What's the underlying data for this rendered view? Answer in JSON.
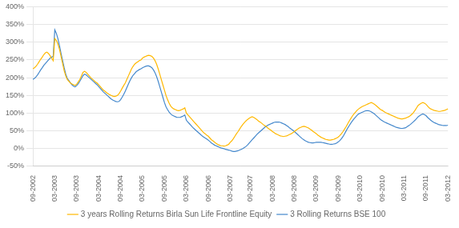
{
  "chart_data": {
    "type": "line",
    "categories": [
      "09-2002",
      null,
      null,
      null,
      null,
      null,
      null,
      null,
      null,
      null,
      null,
      null,
      null,
      null,
      "03-2003",
      null,
      null,
      null,
      null,
      null,
      null,
      null,
      null,
      null,
      null,
      null,
      null,
      null,
      "09-2003",
      null,
      null,
      null,
      null,
      null,
      null,
      null,
      null,
      null,
      null,
      null,
      null,
      null,
      "03-2004",
      null,
      null,
      null,
      null,
      null,
      null,
      null,
      null,
      null,
      null,
      null,
      null,
      null,
      "09-2004",
      null,
      null,
      null,
      null,
      null,
      null,
      null,
      null,
      null,
      null,
      null,
      null,
      null,
      "03-2005",
      null,
      null,
      null,
      null,
      null,
      null,
      null,
      null,
      null,
      null,
      null,
      null,
      null,
      "09-2005",
      null,
      null,
      null,
      null,
      null,
      null,
      null,
      null,
      null,
      null,
      null,
      null,
      null,
      "03-2006",
      null,
      null,
      null,
      null,
      null,
      null,
      null,
      null,
      null,
      null,
      null,
      null,
      null,
      "09-2006",
      null,
      null,
      null,
      null,
      null,
      null,
      null,
      null,
      null,
      null,
      null,
      null,
      null,
      "03-2007",
      null,
      null,
      null,
      null,
      null,
      null,
      null,
      null,
      null,
      null,
      null,
      null,
      "09-2007",
      null,
      null,
      null,
      null,
      null,
      null,
      null,
      null,
      null,
      null,
      null,
      null,
      null,
      "03-2008",
      null,
      null,
      null,
      null,
      null,
      null,
      null,
      null,
      null,
      null,
      null,
      null,
      null,
      "09-2008",
      null,
      null,
      null,
      null,
      null,
      null,
      null,
      null,
      null,
      null,
      null,
      null,
      null,
      "03-2009",
      null,
      null,
      null,
      null,
      null,
      null,
      null,
      null,
      null,
      null,
      null,
      null,
      null,
      "09-2009",
      null,
      null,
      null,
      null,
      null,
      null,
      null,
      null,
      null,
      null,
      null,
      null,
      null,
      "03-2010",
      null,
      null,
      null,
      null,
      null,
      null,
      null,
      null,
      null,
      null,
      null,
      null,
      null,
      "09-2010",
      null,
      null,
      null,
      null,
      null,
      null,
      null,
      null,
      null,
      null,
      null,
      null,
      null,
      "03-2011",
      null,
      null,
      null,
      null,
      null,
      null,
      null,
      null,
      null,
      null,
      null,
      null,
      null,
      "09-2011",
      null,
      null,
      null,
      null,
      null,
      null,
      null,
      null,
      null,
      null,
      null,
      null,
      null,
      "03-2012"
    ],
    "series": [
      {
        "name": "3 years Rolling Returns Birla Sun Life Frontline Equity",
        "color": "#FFB800",
        "values": [
          225,
          228,
          232,
          238,
          245,
          252,
          258,
          265,
          270,
          272,
          268,
          262,
          255,
          248,
          310,
          305,
          295,
          280,
          260,
          240,
          220,
          205,
          195,
          190,
          185,
          182,
          180,
          178,
          182,
          188,
          195,
          205,
          215,
          218,
          215,
          210,
          205,
          200,
          196,
          192,
          188,
          185,
          180,
          175,
          170,
          165,
          162,
          158,
          155,
          152,
          150,
          148,
          147,
          148,
          150,
          155,
          162,
          170,
          178,
          185,
          195,
          205,
          215,
          225,
          232,
          238,
          242,
          245,
          248,
          250,
          255,
          258,
          260,
          262,
          263,
          262,
          260,
          255,
          248,
          238,
          225,
          210,
          195,
          180,
          165,
          150,
          138,
          128,
          120,
          115,
          112,
          110,
          108,
          107,
          108,
          110,
          112,
          115,
          100,
          95,
          90,
          85,
          80,
          75,
          70,
          65,
          60,
          55,
          50,
          45,
          42,
          38,
          35,
          30,
          25,
          22,
          18,
          15,
          12,
          10,
          8,
          8,
          7,
          8,
          10,
          12,
          18,
          22,
          28,
          35,
          42,
          48,
          55,
          62,
          68,
          73,
          78,
          82,
          85,
          88,
          90,
          88,
          85,
          82,
          78,
          75,
          72,
          68,
          65,
          62,
          58,
          55,
          52,
          48,
          45,
          42,
          40,
          38,
          36,
          35,
          34,
          35,
          36,
          38,
          40,
          42,
          45,
          48,
          52,
          55,
          58,
          60,
          62,
          63,
          62,
          60,
          58,
          55,
          52,
          48,
          45,
          42,
          38,
          35,
          32,
          30,
          28,
          26,
          25,
          24,
          24,
          25,
          26,
          28,
          30,
          33,
          37,
          42,
          48,
          55,
          62,
          70,
          78,
          85,
          92,
          98,
          103,
          108,
          112,
          115,
          118,
          120,
          122,
          124,
          126,
          128,
          130,
          128,
          125,
          122,
          118,
          114,
          110,
          108,
          105,
          102,
          100,
          98,
          96,
          94,
          92,
          90,
          88,
          86,
          85,
          84,
          84,
          85,
          86,
          88,
          90,
          93,
          97,
          102,
          108,
          115,
          122,
          125,
          128,
          130,
          128,
          125,
          120,
          115,
          112,
          110,
          108,
          107,
          106,
          105,
          105,
          106,
          107,
          108,
          110,
          112
        ]
      },
      {
        "name": "3 Rolling Returns BSE 100",
        "color": "#4488CC",
        "values": [
          195,
          198,
          202,
          208,
          215,
          222,
          228,
          235,
          240,
          245,
          250,
          255,
          258,
          260,
          335,
          325,
          310,
          290,
          268,
          248,
          228,
          210,
          198,
          192,
          185,
          180,
          176,
          174,
          178,
          183,
          190,
          198,
          206,
          210,
          208,
          204,
          200,
          196,
          192,
          188,
          184,
          180,
          175,
          170,
          165,
          160,
          156,
          152,
          148,
          144,
          140,
          137,
          135,
          133,
          132,
          133,
          138,
          145,
          153,
          162,
          172,
          182,
          192,
          200,
          207,
          212,
          217,
          220,
          223,
          225,
          228,
          230,
          232,
          233,
          233,
          231,
          228,
          222,
          214,
          203,
          190,
          175,
          160,
          145,
          130,
          118,
          110,
          103,
          98,
          94,
          92,
          90,
          88,
          88,
          88,
          90,
          92,
          95,
          80,
          75,
          70,
          65,
          60,
          56,
          52,
          48,
          44,
          40,
          36,
          33,
          30,
          27,
          24,
          20,
          16,
          13,
          10,
          8,
          6,
          4,
          2,
          1,
          0,
          -2,
          -3,
          -4,
          -5,
          -7,
          -8,
          -8,
          -7,
          -6,
          -4,
          -2,
          0,
          3,
          6,
          10,
          15,
          20,
          25,
          30,
          35,
          40,
          44,
          48,
          52,
          56,
          60,
          63,
          66,
          68,
          70,
          72,
          74,
          75,
          75,
          75,
          74,
          72,
          70,
          68,
          65,
          62,
          58,
          55,
          52,
          48,
          44,
          40,
          36,
          32,
          28,
          25,
          22,
          20,
          18,
          17,
          16,
          16,
          17,
          18,
          18,
          18,
          18,
          17,
          16,
          15,
          14,
          13,
          12,
          12,
          13,
          14,
          16,
          19,
          23,
          28,
          34,
          42,
          50,
          58,
          65,
          72,
          78,
          84,
          89,
          94,
          98,
          100,
          102,
          104,
          106,
          107,
          107,
          106,
          104,
          101,
          98,
          94,
          90,
          86,
          82,
          79,
          76,
          74,
          72,
          70,
          68,
          66,
          64,
          62,
          60,
          59,
          58,
          57,
          57,
          58,
          59,
          62,
          65,
          68,
          72,
          76,
          80,
          85,
          90,
          93,
          96,
          98,
          96,
          93,
          88,
          84,
          80,
          77,
          74,
          72,
          70,
          68,
          67,
          66,
          65,
          65,
          65,
          66
        ]
      }
    ],
    "ylim": [
      -50,
      400
    ],
    "yticks": [
      {
        "value": -50,
        "label": "-50%"
      },
      {
        "value": 0,
        "label": "0%"
      },
      {
        "value": 50,
        "label": "50%"
      },
      {
        "value": 100,
        "label": "100%"
      },
      {
        "value": 150,
        "label": "150%"
      },
      {
        "value": 200,
        "label": "200%"
      },
      {
        "value": 250,
        "label": "250%"
      },
      {
        "value": 300,
        "label": "300%"
      },
      {
        "value": 350,
        "label": "350%"
      },
      {
        "value": 400,
        "label": "400%"
      }
    ],
    "grid": "y",
    "legend": "bottom"
  }
}
